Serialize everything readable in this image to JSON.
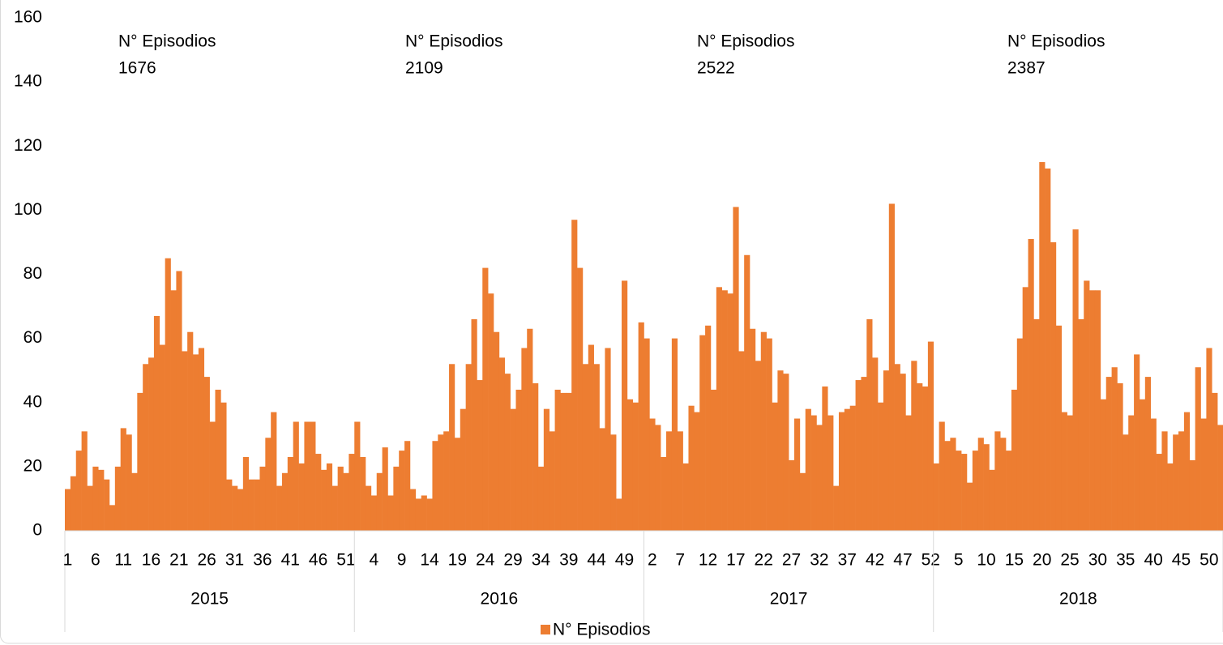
{
  "chart_data": {
    "type": "bar",
    "groups": [
      {
        "label": "2015",
        "categories": [
          "1",
          null,
          null,
          null,
          null,
          "6",
          null,
          null,
          null,
          null,
          "11",
          null,
          null,
          null,
          null,
          "16",
          null,
          null,
          null,
          null,
          "21",
          null,
          null,
          null,
          null,
          "26",
          null,
          null,
          null,
          null,
          "31",
          null,
          null,
          null,
          null,
          "36",
          null,
          null,
          null,
          null,
          "41",
          null,
          null,
          null,
          null,
          "46",
          null,
          null,
          null,
          null,
          "51",
          null
        ]
      },
      {
        "label": "2016",
        "categories": [
          null,
          null,
          null,
          "4",
          null,
          null,
          null,
          null,
          "9",
          null,
          null,
          null,
          null,
          "14",
          null,
          null,
          null,
          null,
          "19",
          null,
          null,
          null,
          null,
          "24",
          null,
          null,
          null,
          null,
          "29",
          null,
          null,
          null,
          null,
          "34",
          null,
          null,
          null,
          null,
          "39",
          null,
          null,
          null,
          null,
          "44",
          null,
          null,
          null,
          null,
          "49",
          null,
          null,
          null
        ]
      },
      {
        "label": "2017",
        "categories": [
          null,
          "2",
          null,
          null,
          null,
          null,
          "7",
          null,
          null,
          null,
          null,
          "12",
          null,
          null,
          null,
          null,
          "17",
          null,
          null,
          null,
          null,
          "22",
          null,
          null,
          null,
          null,
          "27",
          null,
          null,
          null,
          null,
          "32",
          null,
          null,
          null,
          null,
          "37",
          null,
          null,
          null,
          null,
          "42",
          null,
          null,
          null,
          null,
          "47",
          null,
          null,
          null,
          null,
          "52"
        ]
      },
      {
        "label": "2018",
        "categories": [
          null,
          null,
          null,
          null,
          "5",
          null,
          null,
          null,
          null,
          "10",
          null,
          null,
          null,
          null,
          "15",
          null,
          null,
          null,
          null,
          "20",
          null,
          null,
          null,
          null,
          "25",
          null,
          null,
          null,
          null,
          "30",
          null,
          null,
          null,
          null,
          "35",
          null,
          null,
          null,
          null,
          "40",
          null,
          null,
          null,
          null,
          "45",
          null,
          null,
          null,
          null,
          "50",
          null,
          null
        ]
      }
    ],
    "series": [
      {
        "name": "N° Episodios",
        "color": "#ed7d31",
        "values": [
          13,
          17,
          25,
          31,
          14,
          20,
          19,
          16,
          8,
          20,
          32,
          30,
          18,
          43,
          52,
          54,
          67,
          58,
          85,
          75,
          81,
          56,
          62,
          55,
          57,
          48,
          34,
          44,
          40,
          16,
          14,
          13,
          23,
          16,
          16,
          20,
          29,
          37,
          14,
          18,
          23,
          34,
          21,
          34,
          34,
          24,
          19,
          21,
          14,
          20,
          18,
          24,
          34,
          23,
          14,
          11,
          18,
          26,
          11,
          20,
          25,
          28,
          13,
          10,
          11,
          10,
          28,
          30,
          31,
          52,
          29,
          38,
          52,
          66,
          47,
          82,
          74,
          62,
          54,
          49,
          38,
          44,
          57,
          63,
          46,
          20,
          38,
          31,
          44,
          43,
          43,
          97,
          82,
          52,
          58,
          52,
          32,
          57,
          30,
          10,
          78,
          41,
          40,
          65,
          60,
          35,
          33,
          23,
          31,
          60,
          31,
          21,
          39,
          37,
          61,
          64,
          44,
          76,
          75,
          74,
          101,
          56,
          86,
          63,
          53,
          62,
          60,
          40,
          50,
          49,
          22,
          35,
          18,
          38,
          36,
          33,
          45,
          36,
          14,
          37,
          38,
          39,
          47,
          48,
          66,
          54,
          40,
          50,
          102,
          52,
          49,
          36,
          53,
          46,
          45,
          59,
          21,
          34,
          28,
          29,
          25,
          24,
          15,
          25,
          29,
          27,
          19,
          31,
          29,
          25,
          44,
          60,
          76,
          91,
          66,
          115,
          113,
          90,
          64,
          37,
          36,
          94,
          66,
          78,
          75,
          75,
          41,
          48,
          51,
          46,
          30,
          36,
          55,
          41,
          48,
          35,
          24,
          31,
          21,
          30,
          31,
          37,
          22,
          51,
          35,
          57,
          43,
          33
        ]
      }
    ],
    "annotations": [
      {
        "label": "N° Episodios",
        "value": 1676
      },
      {
        "label": "N° Episodios",
        "value": 2109
      },
      {
        "label": "N° Episodios",
        "value": 2522
      },
      {
        "label": "N° Episodios",
        "value": 2387
      }
    ],
    "ylim": [
      0,
      160
    ],
    "yticks": [
      0,
      20,
      40,
      60,
      80,
      100,
      120,
      140,
      160
    ],
    "legend": "bottom"
  }
}
